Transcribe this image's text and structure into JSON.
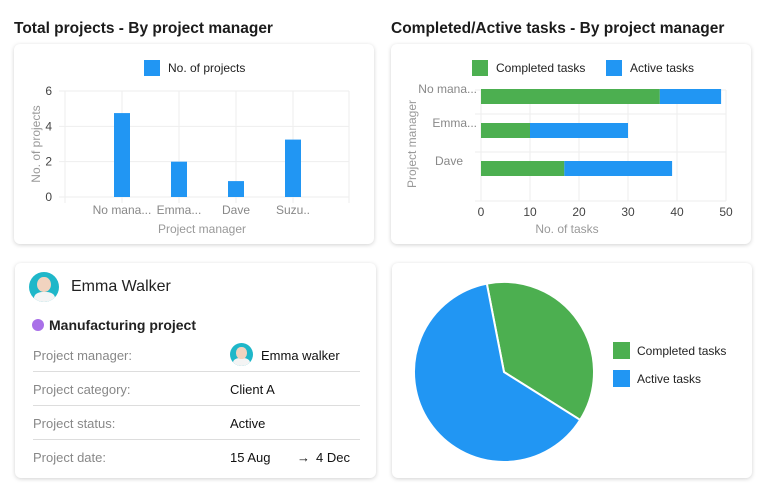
{
  "chart_data": [
    {
      "type": "bar",
      "title": "Total projects - By project manager",
      "categories": [
        "No mana...",
        "Emma...",
        "Dave",
        "Suzu.."
      ],
      "series": [
        {
          "name": "No. of projects",
          "values": [
            4.75,
            2,
            0.9,
            3.25
          ],
          "color": "#2196f3"
        }
      ],
      "xlabel": "Project manager",
      "ylabel": "No. of projects",
      "ylim": [
        0,
        6
      ],
      "yticks": [
        "0",
        "2",
        "4",
        "6"
      ],
      "grid": true,
      "legend": "top"
    },
    {
      "type": "bar",
      "orientation": "horizontal",
      "stacked": true,
      "title": "Completed/Active tasks - By project manager",
      "categories": [
        "No mana...",
        "Emma...",
        "Dave"
      ],
      "series": [
        {
          "name": "Completed tasks",
          "values": [
            36.5,
            10,
            17
          ],
          "color": "#4caf50"
        },
        {
          "name": "Active tasks",
          "values": [
            12.5,
            20,
            22
          ],
          "color": "#2196f3"
        }
      ],
      "xlabel": "No. of tasks",
      "ylabel": "Project manager",
      "xlim": [
        0,
        50
      ],
      "xticks": [
        "0",
        "10",
        "20",
        "30",
        "40",
        "50"
      ],
      "grid": true,
      "legend": "top"
    },
    {
      "type": "pie",
      "slices": [
        {
          "name": "Completed tasks",
          "value": 37,
          "color": "#4caf50"
        },
        {
          "name": "Active tasks",
          "value": 63,
          "color": "#2196f3"
        }
      ],
      "legend": "right"
    }
  ],
  "profile": {
    "name": "Emma Walker",
    "project": "Manufacturing project",
    "project_color": "#a970e8",
    "rows": [
      {
        "label": "Project manager:",
        "value": "Emma walker"
      },
      {
        "label": "Project category:",
        "value": "Client A"
      },
      {
        "label": "Project status:",
        "value": "Active"
      },
      {
        "label": "Project date:",
        "value": "15 Aug",
        "value_end": "4 Dec",
        "arrow": "→"
      }
    ]
  }
}
